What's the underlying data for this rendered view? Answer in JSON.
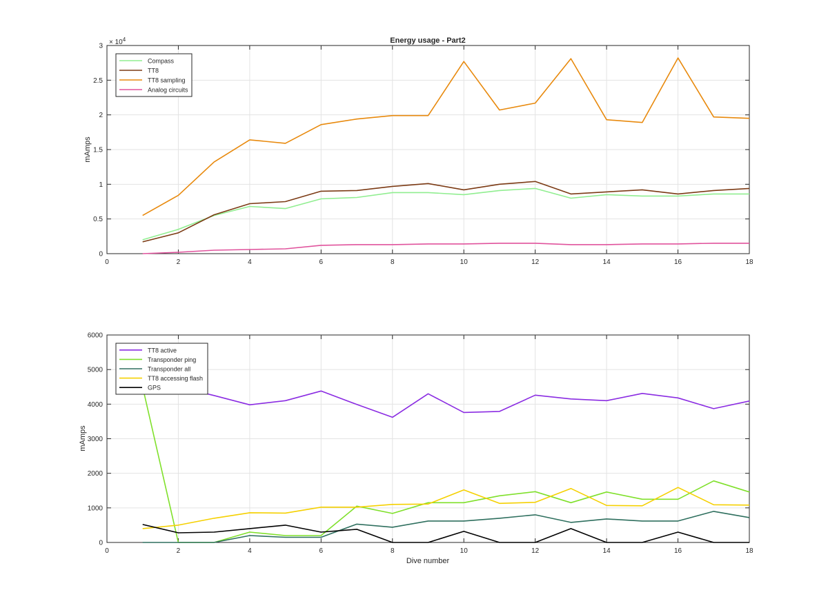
{
  "chart_data": [
    {
      "type": "line",
      "title": "Energy usage - Part2",
      "xlabel": "",
      "ylabel": "mAmps",
      "xlim": [
        0,
        18
      ],
      "ylim": [
        0,
        30000
      ],
      "xticks": [
        0,
        2,
        4,
        6,
        8,
        10,
        12,
        14,
        16,
        18
      ],
      "yticks": [
        0,
        5000,
        10000,
        15000,
        20000,
        25000,
        30000
      ],
      "ytick_labels": [
        "0",
        "0.5",
        "1",
        "1.5",
        "2",
        "2.5",
        "3"
      ],
      "y_exponent_label": "× 10",
      "y_exponent_power": "4",
      "grid": true,
      "legend_position": "top-left",
      "x": [
        1,
        2,
        3,
        4,
        5,
        6,
        7,
        8,
        9,
        10,
        11,
        12,
        13,
        14,
        15,
        16,
        17,
        18
      ],
      "series": [
        {
          "name": "Compass",
          "color": "#90ee90",
          "values": [
            2000,
            3500,
            5500,
            6800,
            6500,
            7900,
            8100,
            8800,
            8800,
            8500,
            9100,
            9400,
            8000,
            8500,
            8300,
            8300,
            8600,
            8600
          ]
        },
        {
          "name": "TT8",
          "color": "#7b3a14",
          "values": [
            1700,
            3000,
            5600,
            7200,
            7500,
            9000,
            9100,
            9700,
            10100,
            9200,
            10000,
            10400,
            8600,
            8900,
            9200,
            8600,
            9100,
            9400
          ]
        },
        {
          "name": "TT8 sampling",
          "color": "#e8890c",
          "values": [
            5500,
            8400,
            13200,
            16400,
            15900,
            18600,
            19400,
            19900,
            19900,
            27700,
            20700,
            21700,
            28100,
            19300,
            18900,
            28200,
            19700,
            19500
          ]
        },
        {
          "name": "Analog circuits",
          "color": "#e0529c",
          "values": [
            0,
            200,
            500,
            600,
            700,
            1200,
            1300,
            1300,
            1400,
            1400,
            1500,
            1500,
            1300,
            1300,
            1400,
            1400,
            1500,
            1500
          ]
        }
      ]
    },
    {
      "type": "line",
      "title": "",
      "xlabel": "Dive number",
      "ylabel": "mAmps",
      "xlim": [
        0,
        18
      ],
      "ylim": [
        0,
        6000
      ],
      "xticks": [
        0,
        2,
        4,
        6,
        8,
        10,
        12,
        14,
        16,
        18
      ],
      "yticks": [
        0,
        1000,
        2000,
        3000,
        4000,
        5000,
        6000
      ],
      "ytick_labels": [
        "0",
        "1000",
        "2000",
        "3000",
        "4000",
        "5000",
        "6000"
      ],
      "grid": true,
      "legend_position": "top-left",
      "x": [
        1,
        2,
        3,
        4,
        5,
        6,
        7,
        8,
        9,
        10,
        11,
        12,
        13,
        14,
        15,
        16,
        17,
        18
      ],
      "series": [
        {
          "name": "TT8 active",
          "color": "#8a2be2",
          "values": [
            4900,
            4500,
            4250,
            3980,
            4100,
            4380,
            3990,
            3620,
            4300,
            3760,
            3790,
            4260,
            4150,
            4100,
            4310,
            4180,
            3870,
            4090
          ]
        },
        {
          "name": "Transponder ping",
          "color": "#7fe02a",
          "values": [
            4500,
            0,
            0,
            300,
            200,
            200,
            1050,
            840,
            1150,
            1150,
            1350,
            1470,
            1150,
            1460,
            1250,
            1250,
            1780,
            1460
          ]
        },
        {
          "name": "Transponder all",
          "color": "#2e6f5e",
          "values": [
            0,
            0,
            0,
            200,
            150,
            150,
            530,
            440,
            620,
            620,
            700,
            800,
            580,
            680,
            620,
            620,
            900,
            720
          ]
        },
        {
          "name": "TT8 accessing flash",
          "color": "#f5d000",
          "values": [
            400,
            500,
            700,
            860,
            850,
            1020,
            1020,
            1100,
            1110,
            1520,
            1130,
            1160,
            1560,
            1070,
            1060,
            1590,
            1090,
            1080
          ]
        },
        {
          "name": "GPS",
          "color": "#000000",
          "values": [
            520,
            280,
            300,
            400,
            500,
            300,
            380,
            0,
            0,
            320,
            0,
            0,
            400,
            0,
            0,
            300,
            0,
            0
          ]
        }
      ]
    }
  ]
}
